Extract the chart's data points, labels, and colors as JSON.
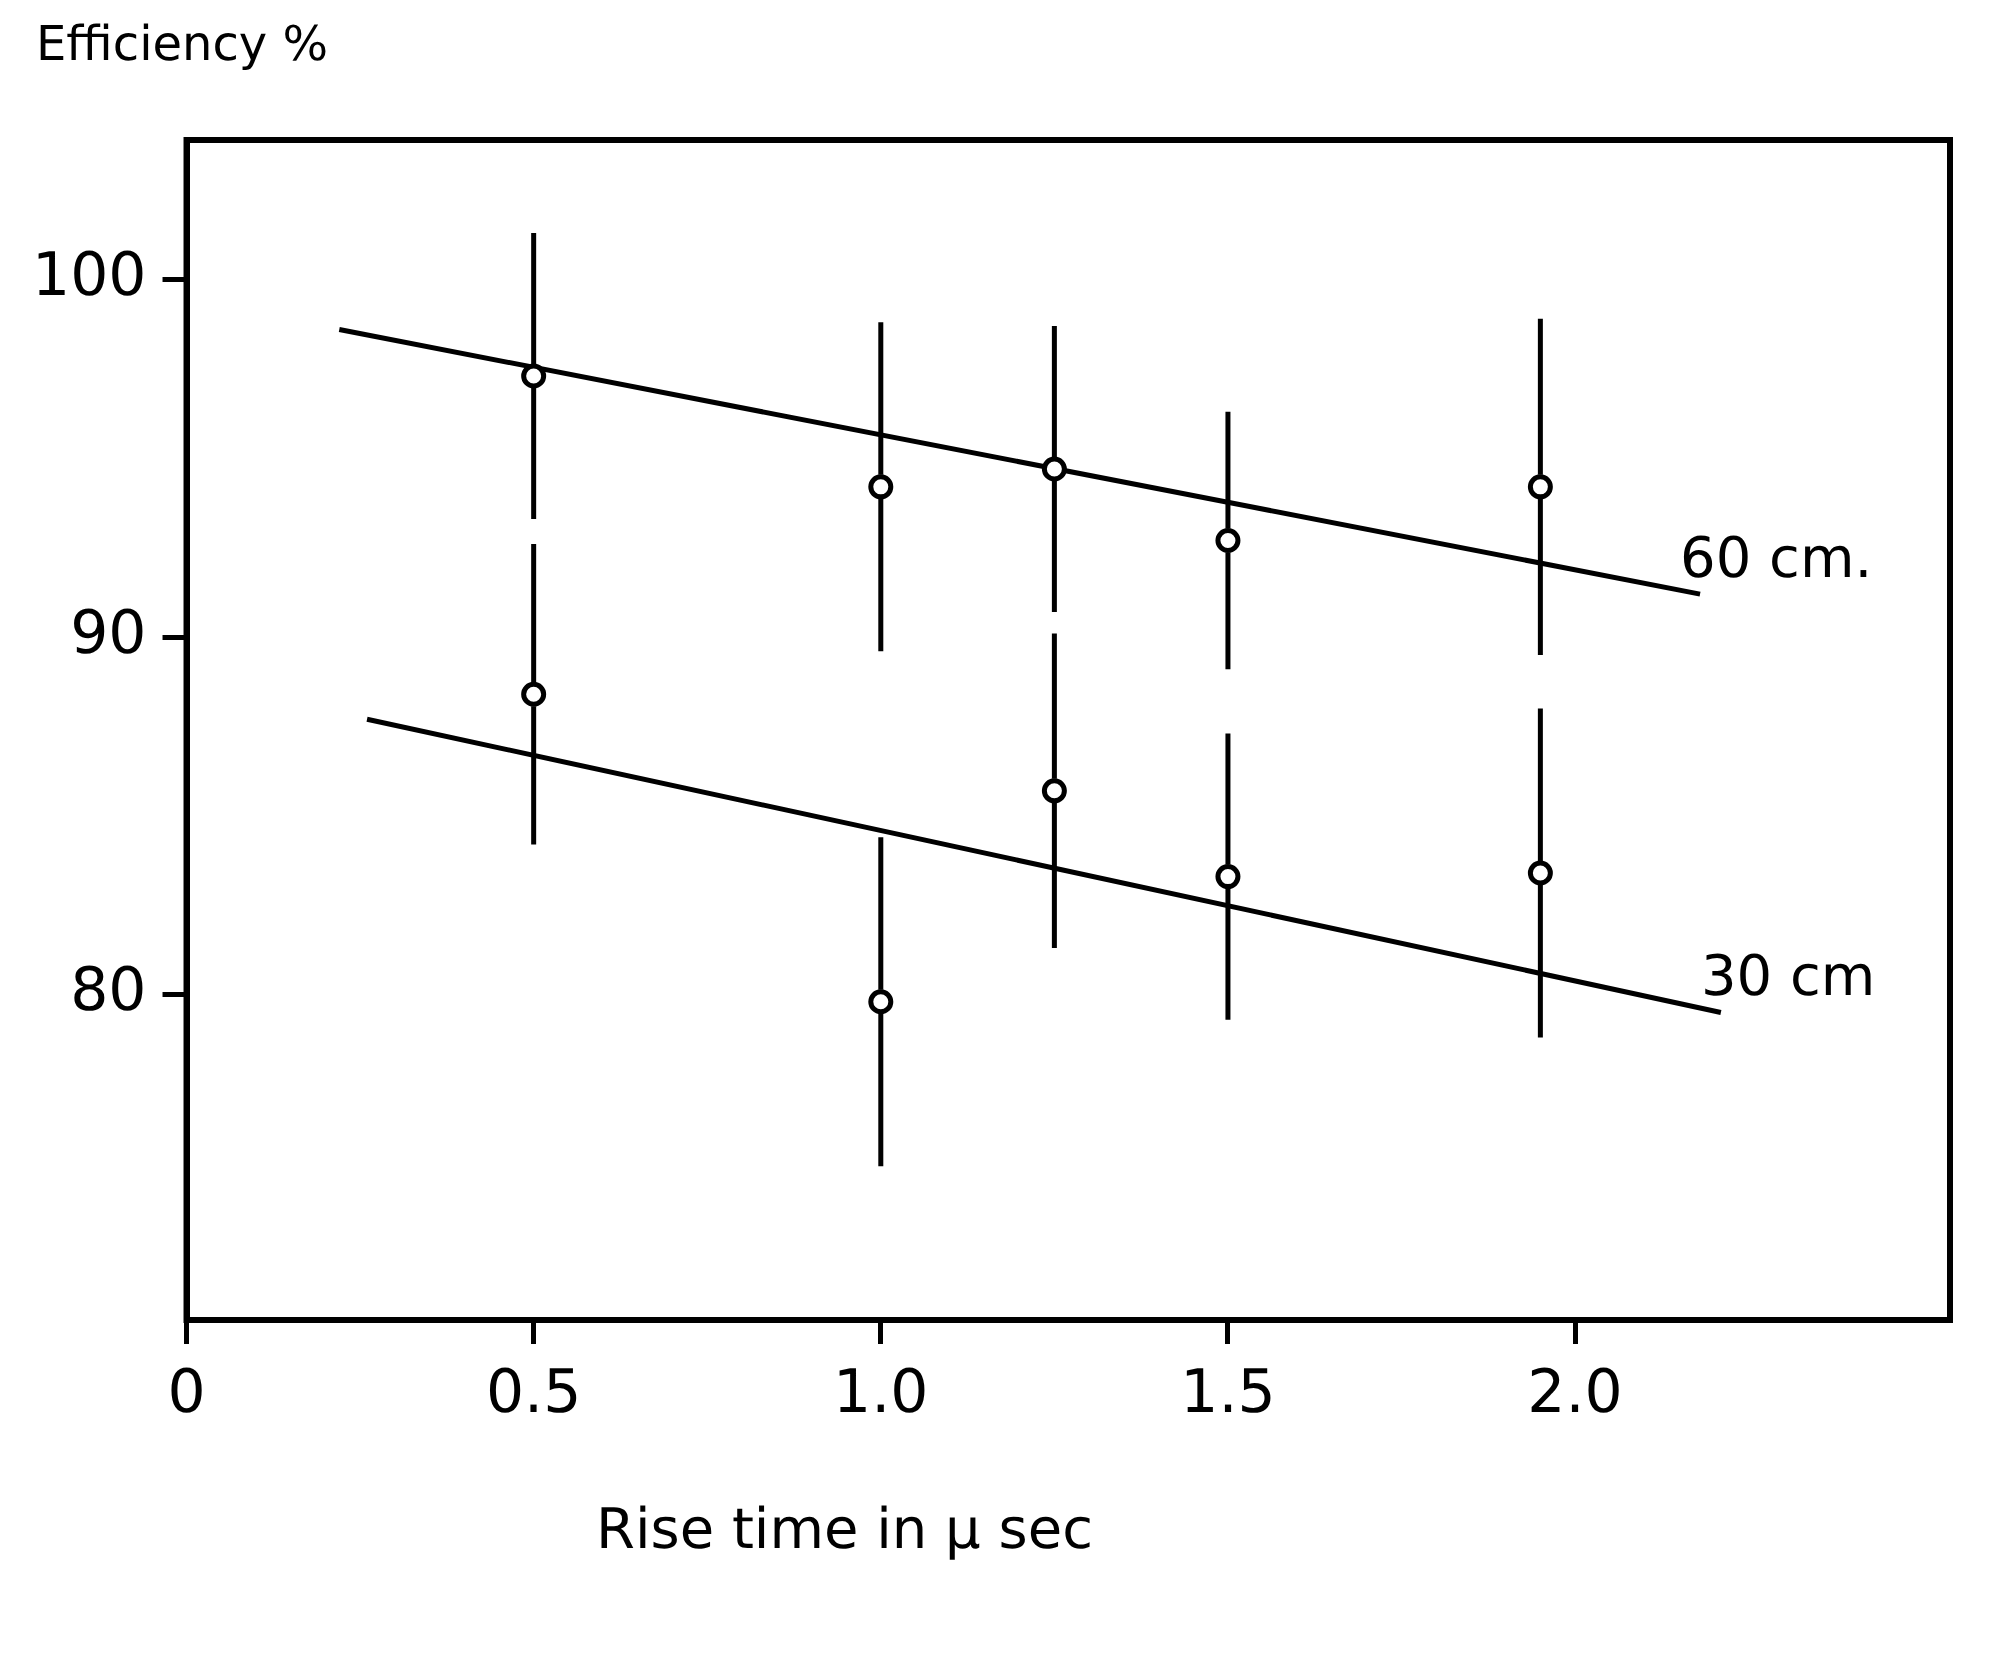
{
  "chart_data": {
    "type": "scatter",
    "ylabel": "Efficiency %",
    "xlabel": "Rise time in μ sec",
    "xlim": [
      0,
      2.54
    ],
    "ylim": [
      70.9,
      103.9
    ],
    "xticks": [
      0,
      0.5,
      {
        "value": 1,
        "label": "1.0"
      },
      1.5,
      {
        "value": 2,
        "label": "2.0"
      }
    ],
    "yticks": [
      80,
      90,
      100
    ],
    "grid": false,
    "legend": false,
    "marker": "circle",
    "series": [
      {
        "color": "#000000",
        "x": [
          0.5,
          1.0,
          1.25,
          1.5,
          1.95
        ],
        "values": [
          97.3,
          94.2,
          94.7,
          92.7,
          94.2
        ],
        "errors": [
          4,
          4.6,
          4,
          3.6,
          4.7
        ]
      },
      {
        "color": "#000000",
        "x": [
          0.5,
          1.0,
          1.25,
          1.5,
          1.95
        ],
        "values": [
          88.4,
          79.8,
          85.7,
          83.3,
          83.4
        ],
        "errors": [
          4.2,
          4.6,
          4.4,
          4,
          4.6
        ]
      },
      {
        "type": "line",
        "name": "60 cm.",
        "marker": "none",
        "color": "#000000",
        "x": [
          0.22,
          2.18
        ],
        "values": [
          98.6,
          91.2
        ]
      },
      {
        "type": "line",
        "name": "30 cm",
        "marker": "none",
        "color": "#000000",
        "x": [
          0.26,
          2.21
        ],
        "values": [
          87.7,
          79.5
        ]
      }
    ]
  }
}
